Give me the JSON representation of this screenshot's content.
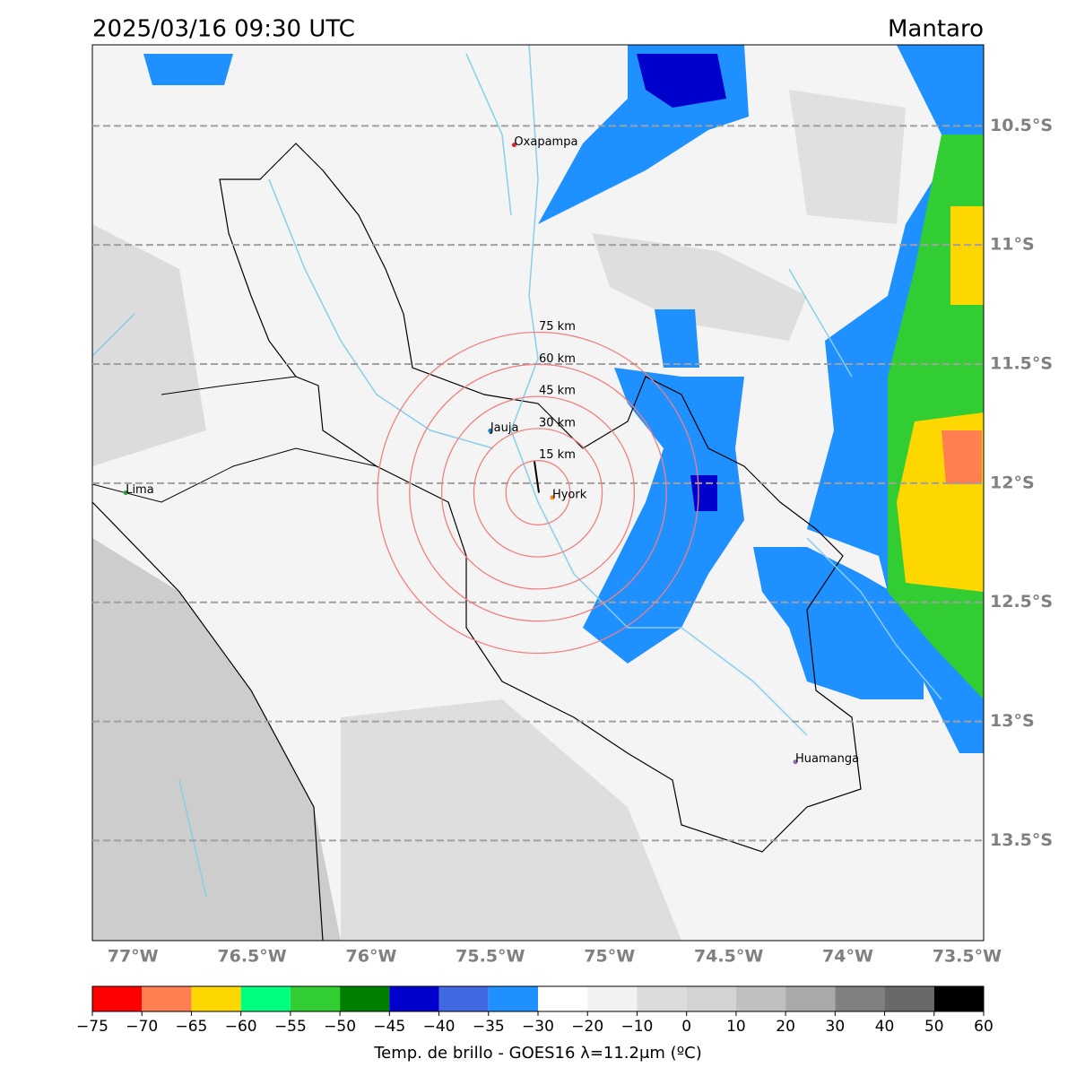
{
  "header": {
    "time": "2025/03/16 09:30 UTC",
    "region": "Mantaro"
  },
  "map": {
    "lonlim": [
      -77.17,
      -73.43
    ],
    "latlim": [
      -13.92,
      -10.16
    ],
    "lat_ticks": [
      {
        "value": -10.5,
        "label": "10.5°S"
      },
      {
        "value": -11,
        "label": "11°S"
      },
      {
        "value": -11.5,
        "label": "11.5°S"
      },
      {
        "value": -12,
        "label": "12°S"
      },
      {
        "value": -12.5,
        "label": "12.5°S"
      },
      {
        "value": -13,
        "label": "13°S"
      },
      {
        "value": -13.5,
        "label": "13.5°S"
      }
    ],
    "lon_ticks": [
      {
        "value": -77,
        "label": "77°W"
      },
      {
        "value": -76.5,
        "label": "76.5°W"
      },
      {
        "value": -76,
        "label": "76°W"
      },
      {
        "value": -75.5,
        "label": "75.5°W"
      },
      {
        "value": -75,
        "label": "75°W"
      },
      {
        "value": -74.5,
        "label": "74.5°W"
      },
      {
        "value": -74,
        "label": "74°W"
      },
      {
        "value": -73.5,
        "label": "73.5°W"
      }
    ],
    "cities": [
      {
        "name": "Oxapampa",
        "lon": -75.4,
        "lat": -10.58,
        "color": "#d62728"
      },
      {
        "name": "Jauja",
        "lon": -75.5,
        "lat": -11.78,
        "color": "#1f77b4"
      },
      {
        "name": "Hyork",
        "lon": -75.24,
        "lat": -12.06,
        "color": "#ff7f0e"
      },
      {
        "name": "Lima",
        "lon": -77.03,
        "lat": -12.04,
        "color": "#2ca02c"
      },
      {
        "name": "Huamanga",
        "lon": -74.22,
        "lat": -13.17,
        "color": "#9467bd"
      }
    ],
    "rings": {
      "center": {
        "lon": -75.3,
        "lat": -12.04
      },
      "color": "#f08080",
      "radii": [
        {
          "value": 15,
          "label": "15 km"
        },
        {
          "value": 30,
          "label": "30 km"
        },
        {
          "value": 45,
          "label": "45 km"
        },
        {
          "value": 60,
          "label": "60 km"
        },
        {
          "value": 75,
          "label": "75 km"
        }
      ]
    }
  },
  "colorbar": {
    "ticks": [
      {
        "value": -75,
        "label": "−75"
      },
      {
        "value": -70,
        "label": "−70"
      },
      {
        "value": -65,
        "label": "−65"
      },
      {
        "value": -60,
        "label": "−60"
      },
      {
        "value": -55,
        "label": "−55"
      },
      {
        "value": -50,
        "label": "−50"
      },
      {
        "value": -45,
        "label": "−45"
      },
      {
        "value": -40,
        "label": "−40"
      },
      {
        "value": -35,
        "label": "−35"
      },
      {
        "value": -30,
        "label": "−30"
      },
      {
        "value": -20,
        "label": "−20"
      },
      {
        "value": -10,
        "label": "−10"
      },
      0,
      10,
      20,
      30,
      40,
      50,
      60
    ],
    "colors": [
      "#ff0000",
      "#ff7f50",
      "#ffd700",
      "#00ff7f",
      "#32cd32",
      "#008000",
      "#0000cd",
      "#4169e1",
      "#1e90ff",
      "#ffffff",
      "#f2f2f2",
      "#dcdcdc",
      "#d3d3d3",
      "#c0c0c0",
      "#a9a9a9",
      "#808080",
      "#696969",
      "#000000"
    ],
    "label": "Temp. de brillo - GOES16 λ=11.2μm (ºC)"
  }
}
